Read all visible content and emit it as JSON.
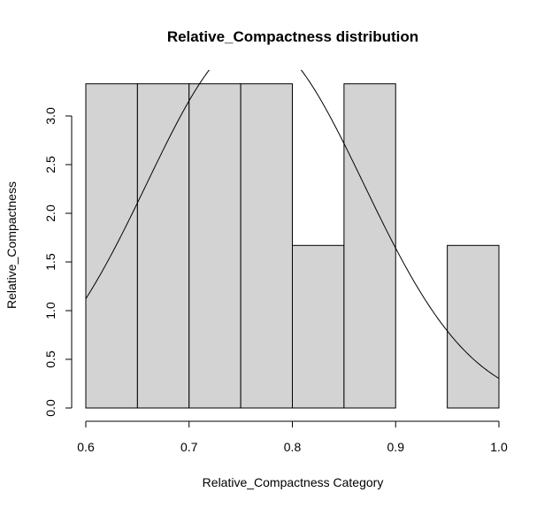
{
  "chart_data": {
    "type": "bar",
    "title": "Relative_Compactness distribution",
    "xlabel": "Relative_Compactness Category",
    "ylabel": "Relative_Compactness",
    "xlim": [
      0.6,
      1.0
    ],
    "ylim": [
      0,
      3.4
    ],
    "x_ticks": [
      "0.6",
      "0.7",
      "0.8",
      "0.9",
      "1.0"
    ],
    "y_ticks": [
      "0.0",
      "0.5",
      "1.0",
      "1.5",
      "2.0",
      "2.5",
      "3.0"
    ],
    "bins": [
      {
        "start": 0.6,
        "end": 0.65,
        "value": 3.33
      },
      {
        "start": 0.65,
        "end": 0.7,
        "value": 3.33
      },
      {
        "start": 0.7,
        "end": 0.75,
        "value": 3.33
      },
      {
        "start": 0.75,
        "end": 0.8,
        "value": 3.33
      },
      {
        "start": 0.8,
        "end": 0.85,
        "value": 1.67
      },
      {
        "start": 0.85,
        "end": 0.9,
        "value": 3.33
      },
      {
        "start": 0.9,
        "end": 0.95,
        "value": 0
      },
      {
        "start": 0.95,
        "end": 1.0,
        "value": 1.67
      }
    ],
    "density_curve": {
      "mean": 0.764,
      "sd": 0.105
    },
    "colors": {
      "bar_fill": "#d3d3d3",
      "bar_stroke": "#000000",
      "curve": "#000000"
    },
    "grid": false,
    "legend": "none"
  }
}
